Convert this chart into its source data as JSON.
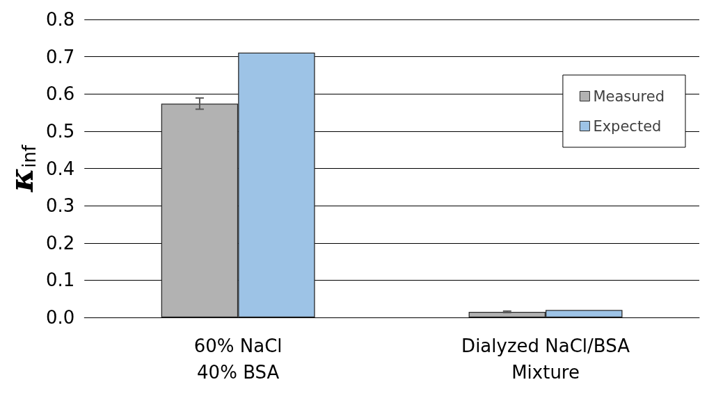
{
  "chart_data": {
    "type": "bar",
    "ylabel": "κ$_{inf}$",
    "categories": [
      "60% NaCl\n40% BSA",
      "Dialyzed NaCl/BSA\nMixture"
    ],
    "series": [
      {
        "name": "Measured",
        "color": "#b2b2b2",
        "values": [
          0.574,
          0.015
        ],
        "errors": [
          0.015,
          0.002
        ]
      },
      {
        "name": "Expected",
        "color": "#9dc3e6",
        "values": [
          0.711,
          0.02
        ]
      }
    ],
    "ylim": [
      0,
      0.8
    ],
    "yticks": [
      {
        "value": 0,
        "label": "0.0"
      },
      0.1,
      0.2,
      0.3,
      0.4,
      0.5,
      0.6,
      0.7,
      0.8
    ],
    "grid": "y",
    "legend": "top right"
  }
}
